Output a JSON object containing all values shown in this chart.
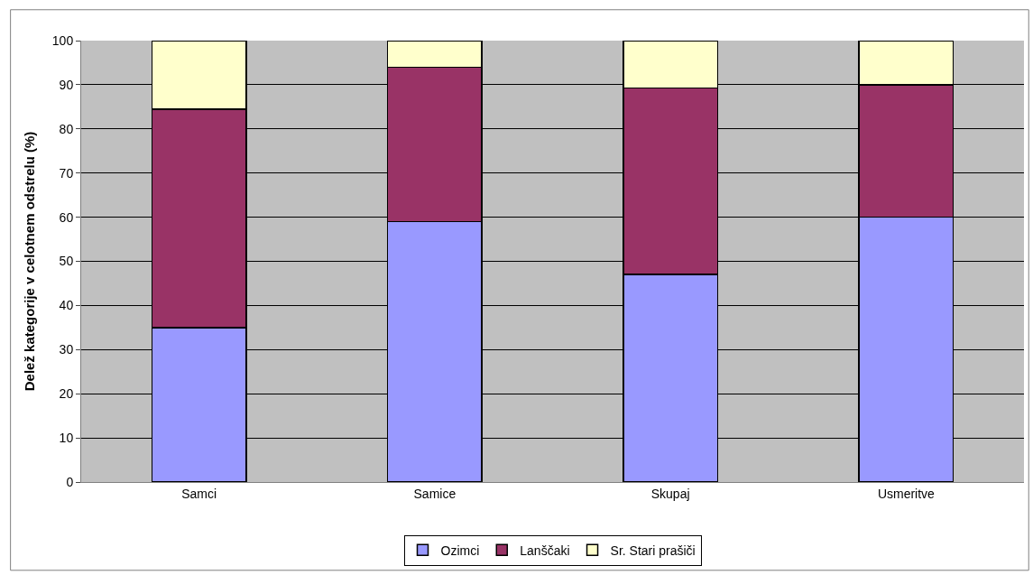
{
  "chart_data": {
    "type": "bar",
    "stacked": true,
    "ylabel": "Delež kategorije v celotnem odstrelu (%)",
    "categories": [
      "Samci",
      "Samice",
      "Skupaj",
      "Usmeritve"
    ],
    "series": [
      {
        "name": "Ozimci",
        "color": "#9999ff",
        "values": [
          35,
          59,
          47,
          60
        ]
      },
      {
        "name": "Lanščaki",
        "color": "#993366",
        "values": [
          49.5,
          35,
          42.3,
          30
        ]
      },
      {
        "name": "Sr. Stari prašiči",
        "color": "#ffffcc",
        "values": [
          15.5,
          6,
          10.7,
          10
        ]
      }
    ],
    "ylim": [
      0,
      100
    ],
    "yticks": [
      0,
      10,
      20,
      30,
      40,
      50,
      60,
      70,
      80,
      90,
      100
    ],
    "grid": "y",
    "legend": "bottom"
  }
}
